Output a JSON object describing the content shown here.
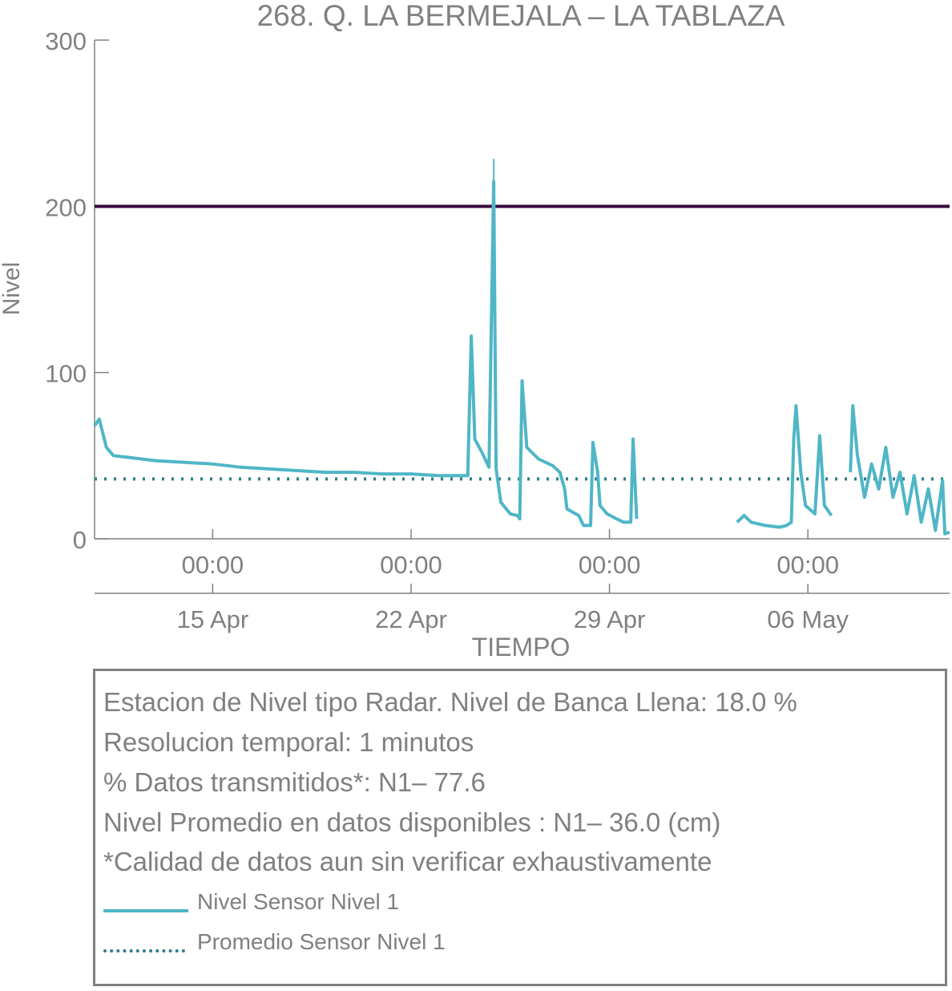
{
  "colors": {
    "sensor": "#4fb6c6",
    "mean": "#2e7d8c",
    "threshold": "#3a0a3e",
    "axis": "#808080"
  },
  "chart_data": {
    "type": "line",
    "title": "268. Q. LA BERMEJALA – LA TABLAZA",
    "xlabel": "TIEMPO",
    "ylabel": "Nivel",
    "ylim": [
      0,
      300
    ],
    "xlim": [
      "2024-04-10T20:00",
      "2024-05-11T00:00"
    ],
    "yticks": [
      "0",
      "100",
      "200",
      "300"
    ],
    "xticks_time": [
      "00:00",
      "00:00",
      "00:00",
      "00:00"
    ],
    "xticks_date": [
      "15 Apr",
      "22 Apr",
      "29 Apr",
      "06 May"
    ],
    "xtick_positions": [
      "2024-04-15T00:00",
      "2024-04-22T00:00",
      "2024-04-29T00:00",
      "2024-05-06T00:00"
    ],
    "threshold": 200,
    "mean_level": 36,
    "series": [
      {
        "name": "Nivel Sensor Nivel 1",
        "points": [
          [
            "2024-04-10T20:00",
            68
          ],
          [
            "2024-04-11T00:00",
            72
          ],
          [
            "2024-04-11T06:00",
            55
          ],
          [
            "2024-04-11T12:00",
            50
          ],
          [
            "2024-04-12T00:00",
            49
          ],
          [
            "2024-04-13T00:00",
            47
          ],
          [
            "2024-04-14T00:00",
            46
          ],
          [
            "2024-04-15T00:00",
            45
          ],
          [
            "2024-04-16T00:00",
            43
          ],
          [
            "2024-04-17T00:00",
            42
          ],
          [
            "2024-04-18T00:00",
            41
          ],
          [
            "2024-04-19T00:00",
            40
          ],
          [
            "2024-04-20T00:00",
            40
          ],
          [
            "2024-04-21T00:00",
            39
          ],
          [
            "2024-04-22T00:00",
            39
          ],
          [
            "2024-04-23T00:00",
            38
          ],
          [
            "2024-04-23T18:00",
            38
          ],
          [
            "2024-04-24T00:00",
            38
          ],
          [
            "2024-04-24T03:00",
            122
          ],
          [
            "2024-04-24T06:00",
            60
          ],
          [
            "2024-04-24T12:00",
            52
          ],
          [
            "2024-04-24T18:00",
            43
          ],
          [
            "2024-04-24T22:00",
            215
          ],
          [
            "2024-04-25T00:00",
            42
          ],
          [
            "2024-04-25T04:00",
            22
          ],
          [
            "2024-04-25T12:00",
            15
          ],
          [
            "2024-04-25T18:00",
            14
          ],
          [
            "2024-04-25T20:00",
            12
          ],
          [
            "2024-04-25T22:00",
            95
          ],
          [
            "2024-04-26T02:00",
            55
          ],
          [
            "2024-04-26T12:00",
            48
          ],
          [
            "2024-04-27T00:00",
            44
          ],
          [
            "2024-04-27T06:00",
            40
          ],
          [
            "2024-04-27T10:00",
            30
          ],
          [
            "2024-04-27T12:00",
            18
          ],
          [
            "2024-04-27T22:00",
            14
          ],
          [
            "2024-04-28T02:00",
            8
          ],
          [
            "2024-04-28T08:00",
            8
          ],
          [
            "2024-04-28T10:00",
            58
          ],
          [
            "2024-04-28T14:00",
            40
          ],
          [
            "2024-04-28T16:00",
            20
          ],
          [
            "2024-04-28T22:00",
            15
          ],
          [
            "2024-04-29T06:00",
            12
          ],
          [
            "2024-04-29T12:00",
            10
          ],
          [
            "2024-04-29T18:00",
            10
          ],
          [
            "2024-04-29T20:00",
            60
          ],
          [
            "2024-04-29T23:00",
            12
          ],
          null,
          [
            "2024-05-03T12:00",
            10
          ],
          [
            "2024-05-03T18:00",
            14
          ],
          [
            "2024-05-04T00:00",
            10
          ],
          [
            "2024-05-04T12:00",
            8
          ],
          [
            "2024-05-05T00:00",
            7
          ],
          [
            "2024-05-05T06:00",
            8
          ],
          [
            "2024-05-05T10:00",
            10
          ],
          [
            "2024-05-05T12:00",
            60
          ],
          [
            "2024-05-05T14:00",
            80
          ],
          [
            "2024-05-05T18:00",
            40
          ],
          [
            "2024-05-05T22:00",
            20
          ],
          [
            "2024-05-06T06:00",
            15
          ],
          [
            "2024-05-06T10:00",
            62
          ],
          [
            "2024-05-06T14:00",
            20
          ],
          [
            "2024-05-06T20:00",
            14
          ],
          null,
          [
            "2024-05-07T12:00",
            40
          ],
          [
            "2024-05-07T14:00",
            80
          ],
          [
            "2024-05-07T18:00",
            50
          ],
          [
            "2024-05-08T00:00",
            25
          ],
          [
            "2024-05-08T06:00",
            45
          ],
          [
            "2024-05-08T12:00",
            30
          ],
          [
            "2024-05-08T18:00",
            55
          ],
          [
            "2024-05-09T00:00",
            25
          ],
          [
            "2024-05-09T06:00",
            40
          ],
          [
            "2024-05-09T12:00",
            15
          ],
          [
            "2024-05-09T18:00",
            38
          ],
          [
            "2024-05-10T00:00",
            10
          ],
          [
            "2024-05-10T06:00",
            30
          ],
          [
            "2024-05-10T12:00",
            5
          ],
          [
            "2024-05-10T18:00",
            35
          ],
          [
            "2024-05-10T20:00",
            3
          ],
          [
            "2024-05-11T00:00",
            4
          ]
        ]
      },
      {
        "name": "Promedio Sensor Nivel 1",
        "value": 36
      }
    ]
  },
  "info": {
    "line1": "Estacion de Nivel tipo Radar. Nivel de Banca Llena: 18.0 %",
    "line2": "Resolucion temporal: 1 minutos",
    "line3": "% Datos transmitidos*: N1– 77.6",
    "line4": "Nivel Promedio en datos disponibles : N1– 36.0 (cm)",
    "line5": "*Calidad de datos aun sin verificar exhaustivamente"
  },
  "legend": {
    "sensor_label": "Nivel Sensor Nivel 1",
    "mean_label": "Promedio Sensor Nivel 1"
  }
}
